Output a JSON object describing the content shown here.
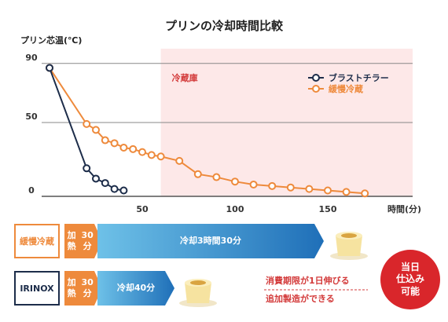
{
  "chart_data": {
    "type": "line",
    "title": "プリンの冷却時間比較",
    "ylabel": "プリン芯温(℃)",
    "xlabel": "時間(分)",
    "xlim": [
      0,
      175
    ],
    "ylim": [
      0,
      100
    ],
    "x_ticks": [
      50,
      100,
      150
    ],
    "y_ticks": [
      0,
      50,
      90
    ],
    "grid": true,
    "legend_position": "top-right",
    "annotation_zone": {
      "label": "冷蔵庫",
      "x_start": 60,
      "x_end": 175,
      "color": "#fde8e8"
    },
    "series": [
      {
        "name": "ブラストチラー",
        "color": "#1d2d4a",
        "points": [
          [
            0,
            87
          ],
          [
            20,
            19
          ],
          [
            25,
            12
          ],
          [
            30,
            9
          ],
          [
            35,
            5
          ],
          [
            40,
            4
          ]
        ]
      },
      {
        "name": "緩慢冷蔵",
        "color": "#ee8a3c",
        "points": [
          [
            0,
            87
          ],
          [
            20,
            49
          ],
          [
            25,
            45
          ],
          [
            30,
            38
          ],
          [
            35,
            36
          ],
          [
            40,
            33
          ],
          [
            45,
            32
          ],
          [
            50,
            30
          ],
          [
            55,
            28
          ],
          [
            60,
            27
          ],
          [
            70,
            24
          ],
          [
            80,
            15
          ],
          [
            90,
            13
          ],
          [
            100,
            10
          ],
          [
            110,
            8
          ],
          [
            120,
            7
          ],
          [
            130,
            6
          ],
          [
            140,
            5
          ],
          [
            150,
            4
          ],
          [
            160,
            3
          ],
          [
            170,
            2
          ]
        ]
      }
    ]
  },
  "flow": {
    "slow": {
      "label": "緩慢冷蔵",
      "heat": {
        "line1": "加熱",
        "line2": "30分"
      },
      "cool": {
        "line1": "冷却",
        "line2": "3時間30分"
      }
    },
    "irinox": {
      "label": "IRINOX",
      "heat": {
        "line1": "加熱",
        "line2": "30分"
      },
      "cool": {
        "line1": "冷却",
        "line2": "40分"
      }
    },
    "notes": {
      "line1": "消費期限が1日伸びる",
      "line2": "追加製造ができる"
    },
    "badge": {
      "line1": "当日",
      "line2": "仕込み",
      "line3": "可能"
    },
    "colors": {
      "heat": "#ee8a3c",
      "cool_gradient_start": "#6ec1e8",
      "cool_gradient_end": "#1f6fb8",
      "badge": "#d9262b"
    }
  }
}
